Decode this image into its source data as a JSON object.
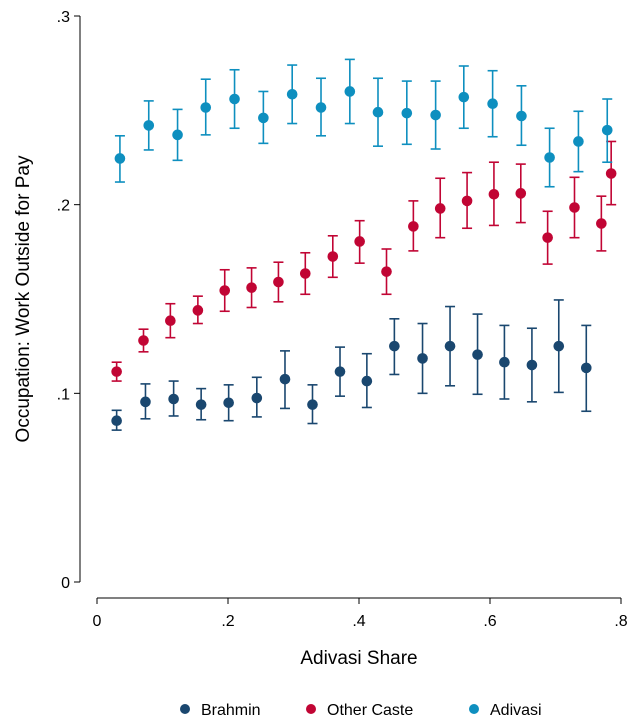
{
  "chart_data": {
    "type": "scatter",
    "xlabel": "Adivasi Share",
    "ylabel": "Occupation: Work Outside for Pay",
    "xlim": [
      0,
      0.8
    ],
    "ylim": [
      0,
      0.3
    ],
    "x_ticks": [
      0,
      0.2,
      0.4,
      0.6,
      0.8
    ],
    "x_tick_labels": [
      "0",
      ".2",
      ".4",
      ".6",
      ".8"
    ],
    "y_ticks": [
      0,
      0.1,
      0.2,
      0.3
    ],
    "y_tick_labels": [
      "0",
      ".1",
      ".2",
      ".3"
    ],
    "grid": false,
    "legend_position": "bottom",
    "error_bars": true,
    "series": [
      {
        "name": "Brahmin",
        "color": "#1a476f",
        "points": [
          {
            "x": 0.03,
            "y": 0.0855,
            "lo": 0.0805,
            "hi": 0.091
          },
          {
            "x": 0.074,
            "y": 0.0955,
            "lo": 0.0865,
            "hi": 0.105
          },
          {
            "x": 0.117,
            "y": 0.097,
            "lo": 0.088,
            "hi": 0.1065
          },
          {
            "x": 0.159,
            "y": 0.094,
            "lo": 0.086,
            "hi": 0.1025
          },
          {
            "x": 0.201,
            "y": 0.095,
            "lo": 0.0855,
            "hi": 0.1045
          },
          {
            "x": 0.244,
            "y": 0.0975,
            "lo": 0.0875,
            "hi": 0.1085
          },
          {
            "x": 0.287,
            "y": 0.1075,
            "lo": 0.092,
            "hi": 0.1225
          },
          {
            "x": 0.329,
            "y": 0.094,
            "lo": 0.084,
            "hi": 0.1045
          },
          {
            "x": 0.371,
            "y": 0.1115,
            "lo": 0.0985,
            "hi": 0.1245
          },
          {
            "x": 0.412,
            "y": 0.1065,
            "lo": 0.0925,
            "hi": 0.121
          },
          {
            "x": 0.454,
            "y": 0.125,
            "lo": 0.11,
            "hi": 0.1395
          },
          {
            "x": 0.497,
            "y": 0.1185,
            "lo": 0.1,
            "hi": 0.137
          },
          {
            "x": 0.539,
            "y": 0.125,
            "lo": 0.104,
            "hi": 0.146
          },
          {
            "x": 0.581,
            "y": 0.1205,
            "lo": 0.0995,
            "hi": 0.142
          },
          {
            "x": 0.622,
            "y": 0.1165,
            "lo": 0.097,
            "hi": 0.136
          },
          {
            "x": 0.664,
            "y": 0.115,
            "lo": 0.0955,
            "hi": 0.1345
          },
          {
            "x": 0.705,
            "y": 0.125,
            "lo": 0.1005,
            "hi": 0.1495
          },
          {
            "x": 0.747,
            "y": 0.1135,
            "lo": 0.0905,
            "hi": 0.136
          }
        ]
      },
      {
        "name": "Other Caste",
        "color": "#c10534",
        "points": [
          {
            "x": 0.03,
            "y": 0.1115,
            "lo": 0.1065,
            "hi": 0.1165
          },
          {
            "x": 0.071,
            "y": 0.128,
            "lo": 0.122,
            "hi": 0.134
          },
          {
            "x": 0.112,
            "y": 0.1385,
            "lo": 0.1295,
            "hi": 0.1475
          },
          {
            "x": 0.154,
            "y": 0.144,
            "lo": 0.137,
            "hi": 0.1515
          },
          {
            "x": 0.195,
            "y": 0.1545,
            "lo": 0.1435,
            "hi": 0.1655
          },
          {
            "x": 0.236,
            "y": 0.156,
            "lo": 0.1455,
            "hi": 0.1665
          },
          {
            "x": 0.277,
            "y": 0.159,
            "lo": 0.1485,
            "hi": 0.1695
          },
          {
            "x": 0.318,
            "y": 0.1635,
            "lo": 0.1525,
            "hi": 0.1745
          },
          {
            "x": 0.36,
            "y": 0.1725,
            "lo": 0.1615,
            "hi": 0.1835
          },
          {
            "x": 0.401,
            "y": 0.1805,
            "lo": 0.169,
            "hi": 0.1915
          },
          {
            "x": 0.442,
            "y": 0.1645,
            "lo": 0.1525,
            "hi": 0.1765
          },
          {
            "x": 0.483,
            "y": 0.1885,
            "lo": 0.1755,
            "hi": 0.202
          },
          {
            "x": 0.524,
            "y": 0.198,
            "lo": 0.1825,
            "hi": 0.214
          },
          {
            "x": 0.565,
            "y": 0.202,
            "lo": 0.1875,
            "hi": 0.217
          },
          {
            "x": 0.606,
            "y": 0.2055,
            "lo": 0.189,
            "hi": 0.2225
          },
          {
            "x": 0.647,
            "y": 0.206,
            "lo": 0.1905,
            "hi": 0.2215
          },
          {
            "x": 0.688,
            "y": 0.1825,
            "lo": 0.1685,
            "hi": 0.1965
          },
          {
            "x": 0.729,
            "y": 0.1985,
            "lo": 0.1825,
            "hi": 0.2145
          },
          {
            "x": 0.77,
            "y": 0.19,
            "lo": 0.1755,
            "hi": 0.2045
          },
          {
            "x": 0.785,
            "y": 0.2165,
            "lo": 0.2,
            "hi": 0.2335
          }
        ]
      },
      {
        "name": "Adivasi",
        "color": "#0e8fbf",
        "points": [
          {
            "x": 0.035,
            "y": 0.2245,
            "lo": 0.212,
            "hi": 0.2365
          },
          {
            "x": 0.079,
            "y": 0.242,
            "lo": 0.229,
            "hi": 0.255
          },
          {
            "x": 0.123,
            "y": 0.237,
            "lo": 0.2235,
            "hi": 0.2505
          },
          {
            "x": 0.166,
            "y": 0.2515,
            "lo": 0.237,
            "hi": 0.2665
          },
          {
            "x": 0.21,
            "y": 0.256,
            "lo": 0.2405,
            "hi": 0.2715
          },
          {
            "x": 0.254,
            "y": 0.246,
            "lo": 0.2325,
            "hi": 0.26
          },
          {
            "x": 0.298,
            "y": 0.2585,
            "lo": 0.243,
            "hi": 0.274
          },
          {
            "x": 0.342,
            "y": 0.2515,
            "lo": 0.2365,
            "hi": 0.267
          },
          {
            "x": 0.386,
            "y": 0.26,
            "lo": 0.243,
            "hi": 0.277
          },
          {
            "x": 0.429,
            "y": 0.249,
            "lo": 0.231,
            "hi": 0.267
          },
          {
            "x": 0.473,
            "y": 0.2485,
            "lo": 0.232,
            "hi": 0.2655
          },
          {
            "x": 0.517,
            "y": 0.2475,
            "lo": 0.2295,
            "hi": 0.2655
          },
          {
            "x": 0.56,
            "y": 0.257,
            "lo": 0.2405,
            "hi": 0.2735
          },
          {
            "x": 0.604,
            "y": 0.2535,
            "lo": 0.236,
            "hi": 0.271
          },
          {
            "x": 0.648,
            "y": 0.247,
            "lo": 0.2315,
            "hi": 0.263
          },
          {
            "x": 0.691,
            "y": 0.225,
            "lo": 0.2095,
            "hi": 0.2405
          },
          {
            "x": 0.735,
            "y": 0.2335,
            "lo": 0.2175,
            "hi": 0.2495
          },
          {
            "x": 0.779,
            "y": 0.2395,
            "lo": 0.2225,
            "hi": 0.256
          }
        ]
      }
    ]
  }
}
